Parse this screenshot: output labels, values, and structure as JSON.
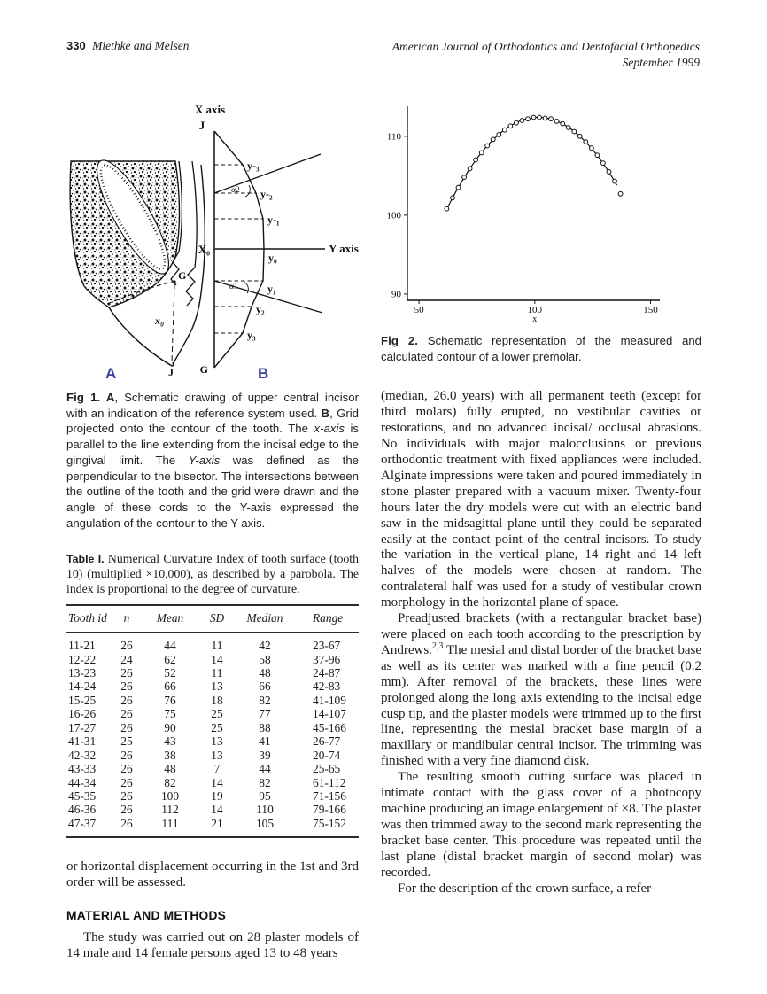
{
  "header": {
    "page_number": "330",
    "authors": "Miethke and Melsen",
    "journal": "American Journal of Orthodontics and Dentofacial Orthopedics",
    "issue": "September 1999"
  },
  "fig1": {
    "labels": {
      "x_axis": "X axis",
      "y_axis": "Y axis",
      "j_top": "J",
      "g_bottom": "G",
      "x0_grid": "X₀",
      "y_m3": "y-₃",
      "y_m2": "y-₂",
      "y_m1": "y-₁",
      "y_0": "y₀",
      "y_1": "y₁",
      "y_2": "y₂",
      "y_3": "y₃",
      "alpha2": "α2",
      "alpha1": "α1",
      "g_tooth": "G",
      "x0_tooth": "x₀",
      "j_tooth": "J",
      "panel_a": "A",
      "panel_b": "B"
    },
    "caption": {
      "label": "Fig 1. A",
      "p1": ", Schematic drawing of upper central incisor with an indication of the reference system used. ",
      "b_label": "B",
      "p2": ", Grid projected onto the contour of the tooth. The ",
      "i1": "x-axis",
      "p3": " is parallel to the line extending from the incisal edge to the gingival limit. The ",
      "i2": "Y-axis",
      "p4": " was defined as the perpendicular to the bisector. The intersections between the outline of the tooth and the grid were drawn and the angle of these cords to the Y-axis expressed the angulation of the contour to the Y-axis."
    }
  },
  "fig2": {
    "caption": {
      "label": "Fig 2.",
      "text": " Schematic representation of the measured and calculated contour of a lower premolar."
    }
  },
  "chart_data": {
    "type": "scatter",
    "title": "",
    "xlabel": "x",
    "ylabel": "",
    "xlim": [
      45,
      154
    ],
    "ylim": [
      89.2,
      113.8
    ],
    "xticks": [
      50,
      100,
      150
    ],
    "yticks": [
      90,
      100,
      110
    ],
    "grid": false,
    "series": [
      {
        "name": "measured contour",
        "marker": "circle",
        "points": [
          [
            62,
            100.8
          ],
          [
            64.5,
            102.2
          ],
          [
            67,
            103.5
          ],
          [
            69.5,
            104.8
          ],
          [
            72,
            105.9
          ],
          [
            74.5,
            107.0
          ],
          [
            77,
            107.9
          ],
          [
            79.5,
            108.8
          ],
          [
            82,
            109.6
          ],
          [
            84.5,
            110.2
          ],
          [
            87,
            110.8
          ],
          [
            89.5,
            111.3
          ],
          [
            92,
            111.7
          ],
          [
            94.5,
            112.0
          ],
          [
            97,
            112.2
          ],
          [
            99.5,
            112.4
          ],
          [
            102,
            112.4
          ],
          [
            104.5,
            112.3
          ],
          [
            107,
            112.2
          ],
          [
            109.5,
            111.9
          ],
          [
            112,
            111.6
          ],
          [
            114.5,
            111.1
          ],
          [
            117,
            110.6
          ],
          [
            119.5,
            110.0
          ],
          [
            122,
            109.3
          ],
          [
            124.5,
            108.5
          ],
          [
            127,
            107.6
          ],
          [
            129.5,
            106.6
          ],
          [
            132,
            105.5
          ],
          [
            134.5,
            104.3
          ],
          [
            137,
            102.7
          ]
        ]
      },
      {
        "name": "calculated parabola",
        "type": "line",
        "fit": {
          "vertex_x": 101.5,
          "vertex_y": 112.4,
          "a": -0.00746,
          "domain": [
            62,
            135.5
          ]
        }
      }
    ]
  },
  "table1": {
    "caption_label": "Table I.",
    "caption_text": " Numerical Curvature Index of tooth surface (tooth 10) (multiplied ×10,000), as described by a parobola. The index is proportional to the degree of curvature.",
    "columns": [
      "Tooth id",
      "n",
      "Mean",
      "SD",
      "Median",
      "Range"
    ],
    "rows": [
      [
        "11-21",
        "26",
        "44",
        "11",
        "42",
        "23-67"
      ],
      [
        "12-22",
        "24",
        "62",
        "14",
        "58",
        "37-96"
      ],
      [
        "13-23",
        "26",
        "52",
        "11",
        "48",
        "24-87"
      ],
      [
        "14-24",
        "26",
        "66",
        "13",
        "66",
        "42-83"
      ],
      [
        "15-25",
        "26",
        "76",
        "18",
        "82",
        "41-109"
      ],
      [
        "16-26",
        "26",
        "75",
        "25",
        "77",
        "14-107"
      ],
      [
        "17-27",
        "26",
        "90",
        "25",
        "88",
        "45-166"
      ],
      [
        "41-31",
        "25",
        "43",
        "13",
        "41",
        "26-77"
      ],
      [
        "42-32",
        "26",
        "38",
        "13",
        "39",
        "20-74"
      ],
      [
        "43-33",
        "26",
        "48",
        "7",
        "44",
        "25-65"
      ],
      [
        "44-34",
        "26",
        "82",
        "14",
        "82",
        "61-112"
      ],
      [
        "45-35",
        "26",
        "100",
        "19",
        "95",
        "71-156"
      ],
      [
        "46-36",
        "26",
        "112",
        "14",
        "110",
        "79-166"
      ],
      [
        "47-37",
        "26",
        "111",
        "21",
        "105",
        "75-152"
      ]
    ]
  },
  "left_column": {
    "paragraph_continued": "or horizontal displacement occurring in the 1st and 3rd order will be assessed.",
    "section_heading": "MATERIAL AND METHODS",
    "paragraph1": "The study was carried out on 28 plaster models of 14 male and 14 female persons aged 13 to 48 years"
  },
  "right_column": {
    "paragraph_continued": "(median, 26.0 years) with all permanent teeth (except for third molars) fully erupted, no vestibular cavities or restorations, and no advanced incisal/ occlusal abrasions. No individuals with major malocclusions or previous orthodontic treatment with fixed appliances were included. Alginate impressions were taken and poured immediately in stone plaster prepared with a vacuum mixer. Twenty-four hours later the dry models were cut with an electric band saw in the midsagittal plane until they could be separated easily at the contact point of the central incisors. To study the variation in the vertical plane, 14 right and 14 left halves of the models were chosen at random. The contralateral half was used for a study of vestibular crown morphology in the horizontal plane of space.",
    "paragraph2_pre": "Preadjusted brackets (with a rectangular bracket base) were placed on each tooth according to the prescription by Andrews.",
    "paragraph2_sup": "2,3",
    "paragraph2_post": " The mesial and distal border of the bracket base as well as its center was marked with a fine pencil (0.2 mm). After removal of the brackets, these lines were prolonged along the long axis extending to the incisal edge cusp tip, and the plaster models were trimmed up to the first line, representing the mesial bracket base margin of a maxillary or mandibular central incisor. The trimming was finished with a very fine diamond disk.",
    "paragraph3": "The resulting smooth cutting surface was placed in intimate contact with the glass cover of a photocopy machine producing an image enlargement of ×8. The plaster was then trimmed away to the second mark representing the bracket base center. This procedure was repeated until the last plane (distal bracket margin of second molar) was recorded.",
    "paragraph4": "For the description of the crown surface, a refer-"
  }
}
